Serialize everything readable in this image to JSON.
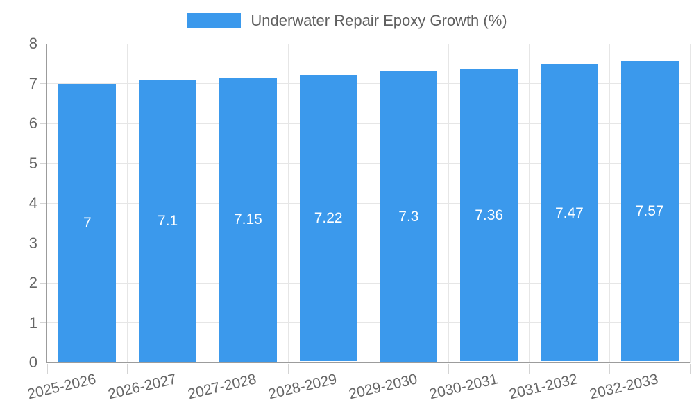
{
  "legend": {
    "label": "Underwater Repair Epoxy Growth (%)"
  },
  "chart_data": {
    "type": "bar",
    "title": "Underwater Repair Epoxy Growth (%)",
    "categories": [
      "2025-2026",
      "2026-2027",
      "2027-2028",
      "2028-2029",
      "2029-2030",
      "2030-2031",
      "2031-2032",
      "2032-2033"
    ],
    "values": [
      7,
      7.1,
      7.15,
      7.22,
      7.3,
      7.36,
      7.47,
      7.57
    ],
    "bar_labels": [
      "7",
      "7.1",
      "7.15",
      "7.22",
      "7.3",
      "7.36",
      "7.47",
      "7.57"
    ],
    "xlabel": "",
    "ylabel": "",
    "ylim": [
      0,
      8
    ],
    "yticks": [
      0,
      1,
      2,
      3,
      4,
      5,
      6,
      7,
      8
    ],
    "grid": true,
    "legend_position": "top",
    "colors": {
      "bar": "#3b99ec",
      "bar_label": "#ffffff",
      "axis": "#9c9c9c",
      "grid": "#e6e6e6",
      "tick": "#d4d4d4",
      "text": "#666666",
      "legend_text": "#5f5f5f"
    }
  }
}
